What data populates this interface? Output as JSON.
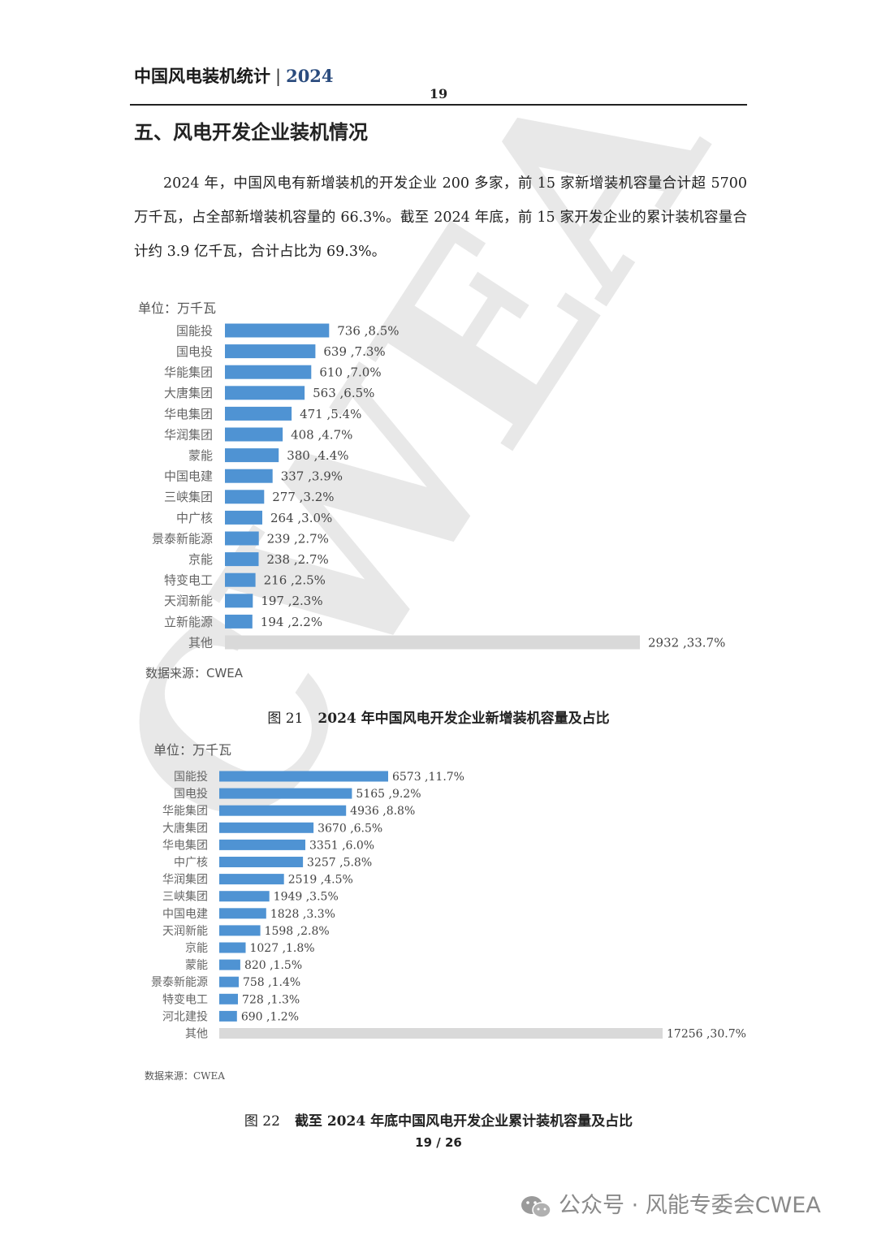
{
  "header": {
    "title": "中国风电装机统计",
    "separator": "|",
    "year": "2024",
    "page_number": "19"
  },
  "section_title": "五、风电开发企业装机情况",
  "paragraph": "2024 年，中国风电有新增装机的开发企业 200 多家，前 15 家新增装机容量合计超 5700 万千瓦，占全部新增装机容量的 66.3%。截至 2024 年底，前 15 家开发企业的累计装机容量合计约 3.9 亿千瓦，合计占比为 69.3%。",
  "background_watermark": "CWEA",
  "chart_data": [
    {
      "type": "bar",
      "orientation": "horizontal",
      "unit_label": "单位：万千瓦",
      "source": "数据来源：CWEA",
      "caption_number": "图 21",
      "caption": "2024 年中国风电开发企业新增装机容量及占比",
      "categories": [
        "国能投",
        "国电投",
        "华能集团",
        "大唐集团",
        "华电集团",
        "华润集团",
        "蒙能",
        "中国电建",
        "三峡集团",
        "中广核",
        "景泰新能源",
        "京能",
        "特变电工",
        "天润新能",
        "立新能源",
        "其他"
      ],
      "values": [
        736,
        639,
        610,
        563,
        471,
        408,
        380,
        337,
        277,
        264,
        239,
        238,
        216,
        197,
        194,
        2932
      ],
      "percentages": [
        "8.5%",
        "7.3%",
        "7.0%",
        "6.5%",
        "5.4%",
        "4.7%",
        "4.4%",
        "3.9%",
        "3.2%",
        "3.0%",
        "2.7%",
        "2.7%",
        "2.5%",
        "2.3%",
        "2.2%",
        "33.7%"
      ],
      "data_labels": [
        "736 ,8.5%",
        "639 ,7.3%",
        "610 ,7.0%",
        "563 ,6.5%",
        "471 ,5.4%",
        "408 ,4.7%",
        "380 ,4.4%",
        "337 ,3.9%",
        "277 ,3.2%",
        "264 ,3.0%",
        "239 ,2.7%",
        "238 ,2.7%",
        "216 ,2.5%",
        "197 ,2.3%",
        "194 ,2.2%",
        "2932 ,33.7%"
      ],
      "colors": {
        "company": "#4f93d3",
        "other": "#d9d9d9"
      },
      "grid": false
    },
    {
      "type": "bar",
      "orientation": "horizontal",
      "unit_label": "单位：万千瓦",
      "source": "数据来源：CWEA",
      "caption_number": "图 22",
      "caption": "截至 2024 年底中国风电开发企业累计装机容量及占比",
      "categories": [
        "国能投",
        "国电投",
        "华能集团",
        "大唐集团",
        "华电集团",
        "中广核",
        "华润集团",
        "三峡集团",
        "中国电建",
        "天润新能",
        "京能",
        "蒙能",
        "景泰新能源",
        "特变电工",
        "河北建投",
        "其他"
      ],
      "values": [
        6573,
        5165,
        4936,
        3670,
        3351,
        3257,
        2519,
        1949,
        1828,
        1598,
        1027,
        820,
        758,
        728,
        690,
        17256
      ],
      "percentages": [
        "11.7%",
        "9.2%",
        "8.8%",
        "6.5%",
        "6.0%",
        "5.8%",
        "4.5%",
        "3.5%",
        "3.3%",
        "2.8%",
        "1.8%",
        "1.5%",
        "1.4%",
        "1.3%",
        "1.2%",
        "30.7%"
      ],
      "data_labels": [
        "6573 ,11.7%",
        "5165 ,9.2%",
        "4936 ,8.8%",
        "3670 ,6.5%",
        "3351 ,6.0%",
        "3257 ,5.8%",
        "2519 ,4.5%",
        "1949 ,3.5%",
        "1828 ,3.3%",
        "1598 ,2.8%",
        "1027 ,1.8%",
        "820 ,1.5%",
        "758 ,1.4%",
        "728 ,1.3%",
        "690 ,1.2%",
        "17256 ,30.7%"
      ],
      "colors": {
        "company": "#4f93d3",
        "other": "#d9d9d9"
      },
      "grid": false
    }
  ],
  "footer": {
    "page": "19",
    "slash": "/",
    "total": "26",
    "page_indicator": "19 / 26"
  },
  "wechat_watermark": "公众号 · 风能专委会CWEA",
  "icons": {
    "wechat": "wechat-icon"
  }
}
